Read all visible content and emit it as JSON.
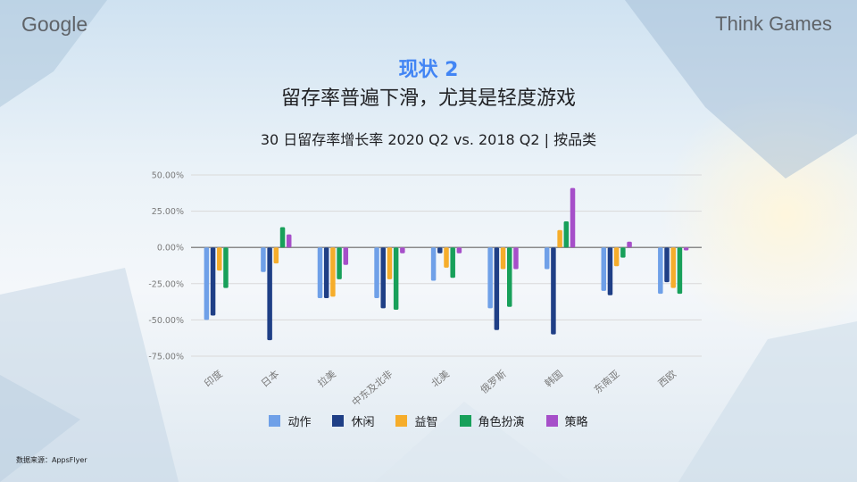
{
  "header": {
    "google_logo": "Google",
    "brand_logo": "Think Games"
  },
  "slide": {
    "heading": "现状 2",
    "subheading": "留存率普遍下滑，尤其是轻度游戏",
    "source": "数据来源：AppsFlyer"
  },
  "colors": {
    "action": "#6fa0e8",
    "casual": "#1f3f86",
    "puzzle": "#f6ad2b",
    "rpg": "#18a05a",
    "strategy": "#a64fc9",
    "axis_text": "#7a7a7a"
  },
  "chart_data": {
    "type": "bar",
    "title": "30 日留存率增长率 2020 Q2 vs. 2018 Q2 | 按品类",
    "xlabel": "",
    "ylabel": "",
    "ylim": [
      -75,
      50
    ],
    "yticks": [
      "50.00%",
      "25.00%",
      "0.00%",
      "-25.00%",
      "-50.00%",
      "-75.00%"
    ],
    "ytick_values": [
      50,
      25,
      0,
      -25,
      -50,
      -75
    ],
    "grid": true,
    "legend_position": "bottom",
    "categories": [
      "印度",
      "日本",
      "拉美",
      "中东及北非",
      "北美",
      "俄罗斯",
      "韩国",
      "东南亚",
      "西欧"
    ],
    "series": [
      {
        "name": "动作",
        "color_key": "action",
        "values": [
          -50,
          -17,
          -35,
          -35,
          -23,
          -42,
          -15,
          -30,
          -32
        ]
      },
      {
        "name": "休闲",
        "color_key": "casual",
        "values": [
          -47,
          -64,
          -35,
          -42,
          -4,
          -57,
          -60,
          -33,
          -24
        ]
      },
      {
        "name": "益智",
        "color_key": "puzzle",
        "values": [
          -16,
          -11,
          -34,
          -22,
          -14,
          -15,
          12,
          -13,
          -28
        ]
      },
      {
        "name": "角色扮演",
        "color_key": "rpg",
        "values": [
          -28,
          14,
          -22,
          -43,
          -21,
          -41,
          18,
          -7,
          -32
        ]
      },
      {
        "name": "策略",
        "color_key": "strategy",
        "values": [
          0,
          9,
          -12,
          -4,
          -4,
          -15,
          41,
          4,
          -2
        ]
      }
    ]
  }
}
